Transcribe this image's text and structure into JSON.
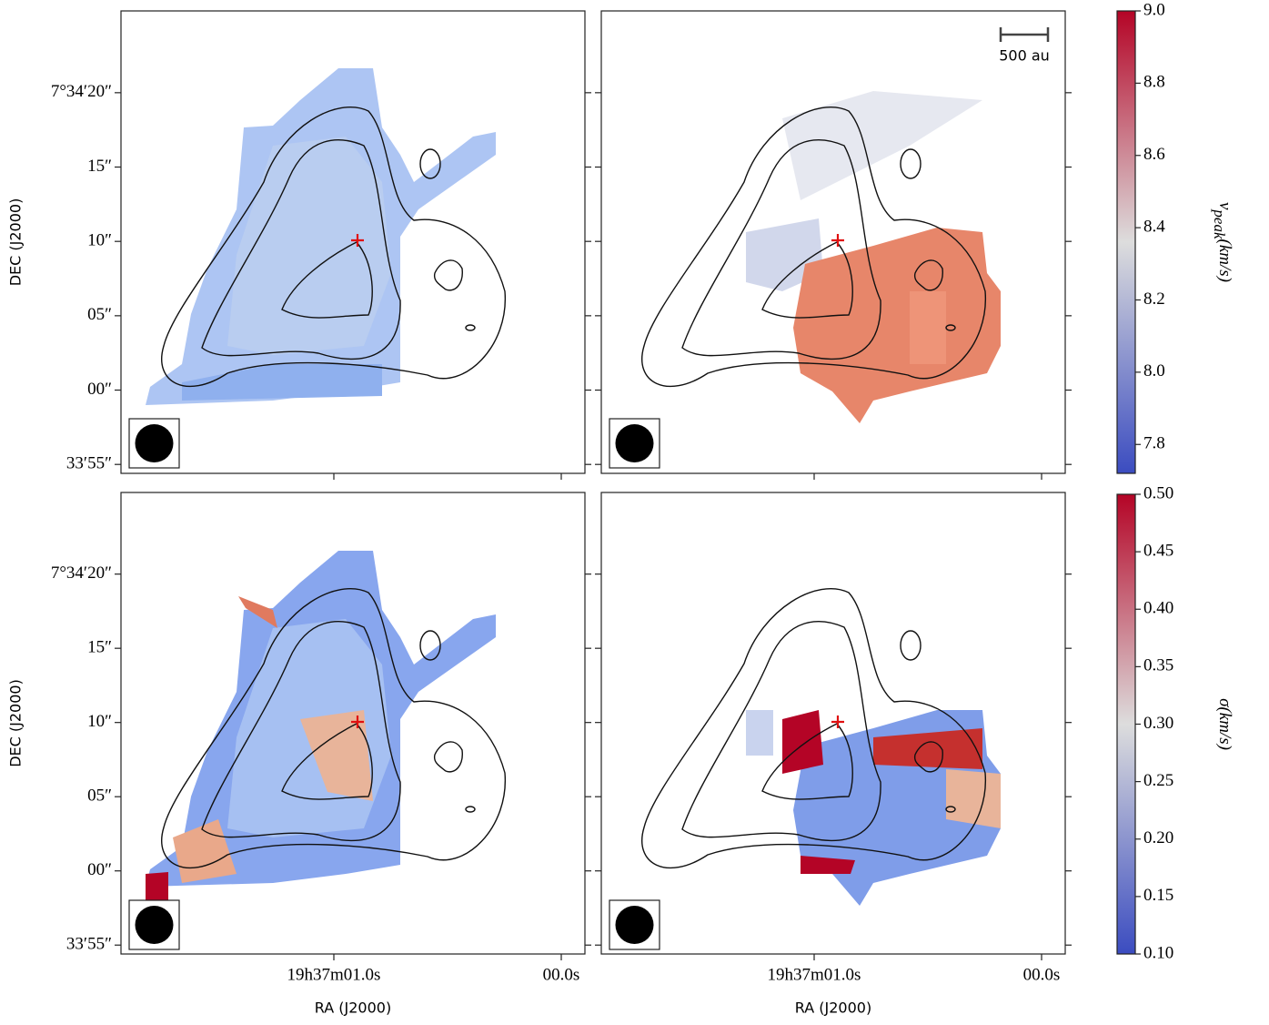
{
  "axes": {
    "xlim": [
      1.936,
      -0.104
    ],
    "ylim": [
      -5.6,
      25.5
    ],
    "xticks": [
      {
        "value": 1.0,
        "label": "19h37m01.0s"
      },
      {
        "value": 0,
        "label": "00.0s"
      }
    ],
    "yticks": [
      {
        "value": 20,
        "label": "7°34′20″"
      },
      {
        "value": 15,
        "label": "15″"
      },
      {
        "value": 10,
        "label": "10″"
      },
      {
        "value": 5,
        "label": "05″"
      },
      {
        "value": 0,
        "label": "00″"
      },
      {
        "value": -5,
        "label": "33′55″"
      }
    ]
  },
  "panels": [
    {
      "ylabel": "DEC (J2000)",
      "scalebar": null
    },
    {
      "scalebar": "500 au"
    },
    {
      "ylabel": "DEC (J2000)",
      "xlabel": "RA (J2000)"
    },
    {
      "xlabel": "RA (J2000)"
    }
  ],
  "colorbars": [
    {
      "label": {
        "symbol": "v",
        "subscript": "peak",
        "unit": "(km/s)"
      },
      "colors": [
        "#3b4cc0",
        "#dddddd",
        "#b40426"
      ],
      "ylim": [
        7.72,
        9.0
      ],
      "yticks": [
        {
          "value": 7.8,
          "label": "7.8"
        },
        {
          "value": 8.0,
          "label": "8.0"
        },
        8.2,
        8.4,
        8.6,
        8.8,
        {
          "value": 9.0,
          "label": "9.0"
        }
      ]
    },
    {
      "label": {
        "symbol": "σ",
        "unit": "(km/s)"
      },
      "colors": [
        "#3b4cc0",
        "#dddddd",
        "#b40426"
      ],
      "ylim": [
        0.1,
        0.5
      ],
      "yticks": [
        {
          "value": 0.1,
          "label": "0.10"
        },
        0.15,
        {
          "value": 0.2,
          "label": "0.20"
        },
        0.25,
        {
          "value": 0.3,
          "label": "0.30"
        },
        0.35,
        {
          "value": 0.4,
          "label": "0.40"
        },
        0.45,
        {
          "value": 0.5,
          "label": "0.50"
        }
      ]
    }
  ]
}
